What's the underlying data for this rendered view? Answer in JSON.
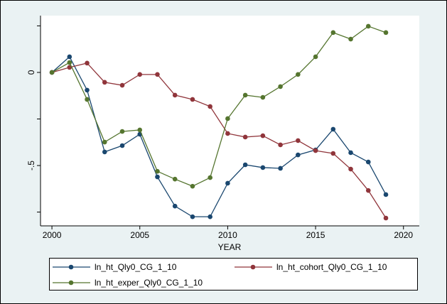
{
  "chart_data": {
    "type": "line",
    "x_label": "YEAR",
    "x": [
      2000,
      2001,
      2002,
      2003,
      2004,
      2005,
      2006,
      2007,
      2008,
      2009,
      2010,
      2011,
      2012,
      2013,
      2014,
      2015,
      2016,
      2017,
      2018,
      2019
    ],
    "xlim": [
      1999.35,
      2020.9
    ],
    "xticks": [
      2000,
      2005,
      2010,
      2015,
      2020
    ],
    "ylim": [
      -0.824,
      0.305
    ],
    "yticks": [
      0,
      {
        "value": -0.5,
        "label": "-.5"
      }
    ],
    "y_minor_ticks": [
      0.25,
      -0.25,
      -0.75
    ],
    "series": [
      {
        "name": "ln_ht_Qly0_CG_1_10",
        "color": "#1a476f",
        "values": [
          0,
          0.084,
          -0.095,
          -0.427,
          -0.393,
          -0.332,
          -0.561,
          -0.718,
          -0.775,
          -0.775,
          -0.595,
          -0.496,
          -0.511,
          -0.515,
          -0.443,
          -0.416,
          -0.305,
          -0.431,
          -0.481,
          -0.656
        ]
      },
      {
        "name": "ln_ht_cohort_Qly0_CG_1_10",
        "color": "#90353b",
        "values": [
          0,
          0.027,
          0.05,
          -0.053,
          -0.069,
          -0.011,
          -0.011,
          -0.122,
          -0.145,
          -0.183,
          -0.328,
          -0.347,
          -0.34,
          -0.389,
          -0.366,
          -0.42,
          -0.435,
          -0.519,
          -0.634,
          -0.782
        ]
      },
      {
        "name": "ln_ht_exper_Qly0_CG_1_10",
        "color": "#55752f",
        "values": [
          0,
          0.053,
          -0.145,
          -0.374,
          -0.317,
          -0.309,
          -0.531,
          -0.573,
          -0.611,
          -0.565,
          -0.248,
          -0.122,
          -0.134,
          -0.076,
          -0.011,
          0.084,
          0.214,
          0.179,
          0.248,
          0.214
        ]
      }
    ]
  }
}
